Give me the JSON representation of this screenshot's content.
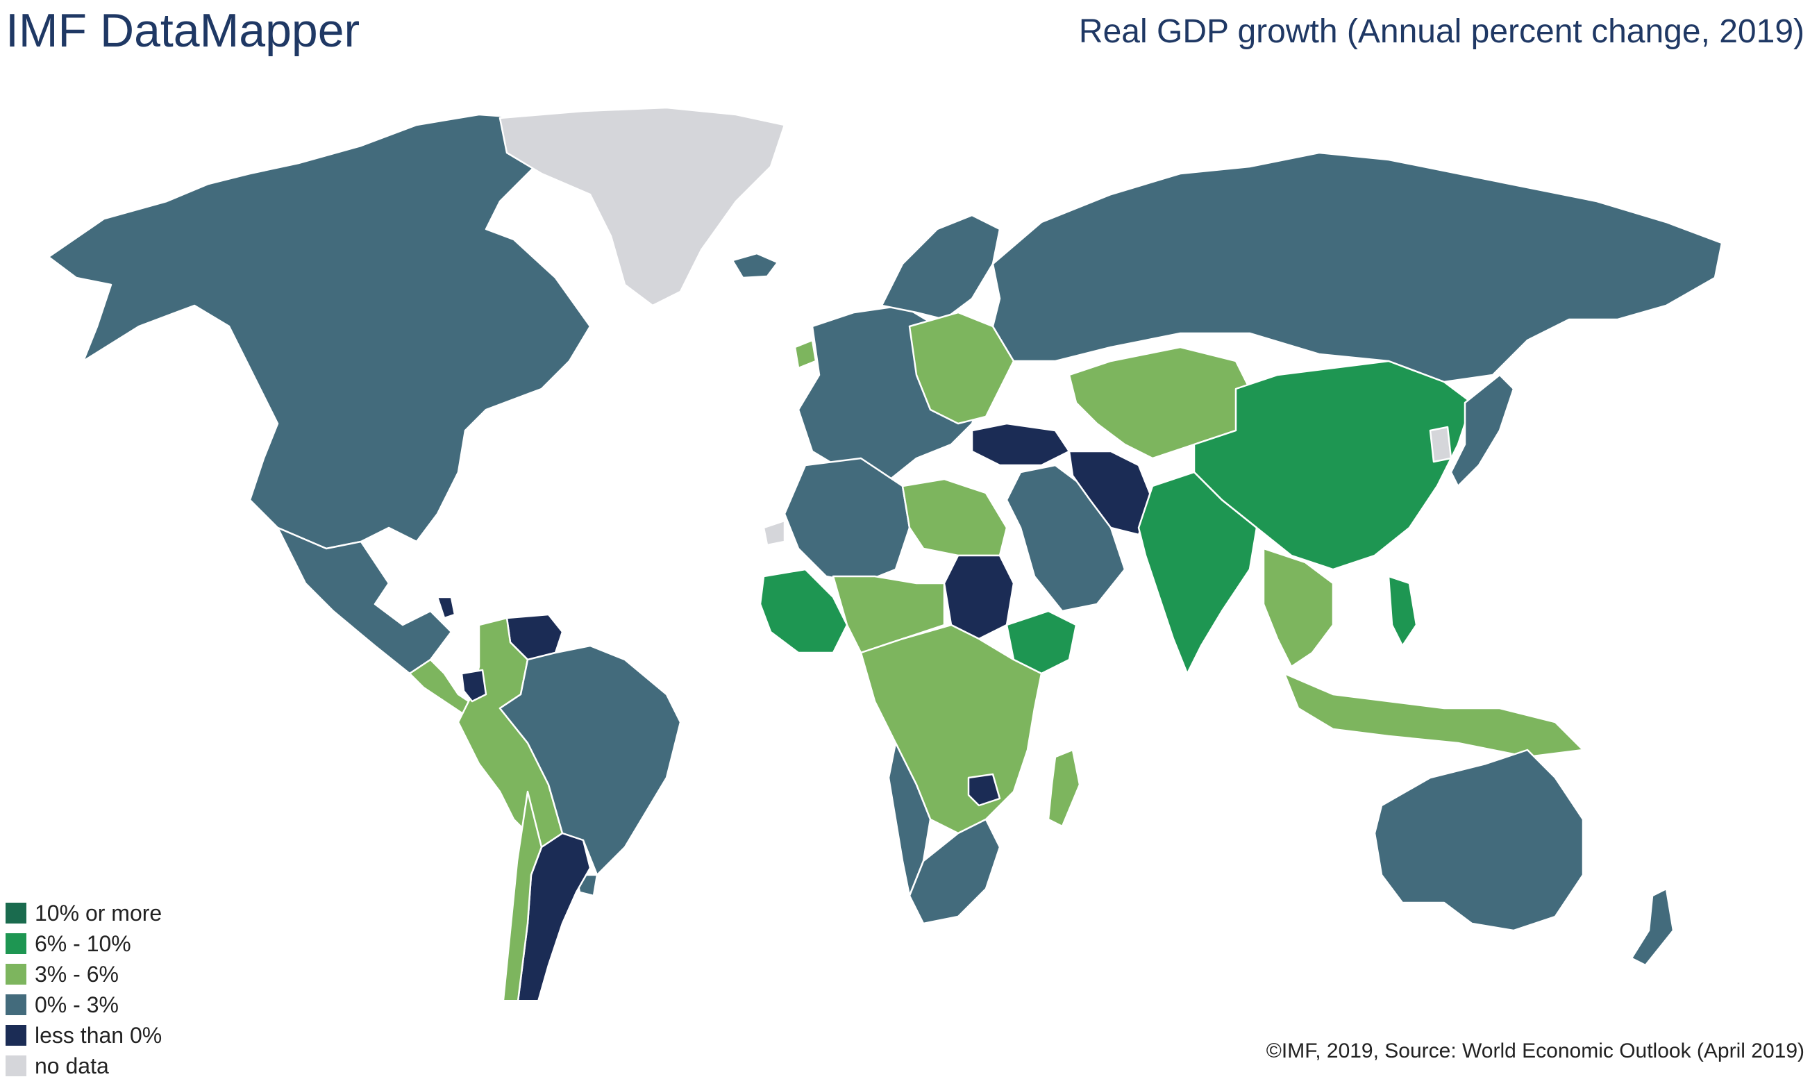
{
  "header": {
    "app_title": "IMF DataMapper",
    "map_title": "Real GDP growth (Annual percent change, 2019)"
  },
  "legend": {
    "items": [
      {
        "label": "10% or more",
        "color": "#1a6b4e"
      },
      {
        "label": "6% - 10%",
        "color": "#1e9652"
      },
      {
        "label": "3% - 6%",
        "color": "#7db55e"
      },
      {
        "label": "0% - 3%",
        "color": "#436b7c"
      },
      {
        "label": "less than 0%",
        "color": "#1b2c55"
      },
      {
        "label": "no data",
        "color": "#d5d6da"
      }
    ]
  },
  "footer": {
    "credit": "©IMF, 2019, Source: World Economic Outlook (April 2019)"
  },
  "map": {
    "ocean_color": "#ffffff",
    "border_color": "#ffffff",
    "regions": [
      {
        "name": "north-america",
        "category": "0% - 3%"
      },
      {
        "name": "greenland",
        "category": "no data"
      },
      {
        "name": "mexico",
        "category": "0% - 3%"
      },
      {
        "name": "central-america",
        "category": "3% - 6%"
      },
      {
        "name": "nicaragua",
        "category": "less than 0%"
      },
      {
        "name": "venezuela",
        "category": "less than 0%"
      },
      {
        "name": "colombia-peru-bolivia",
        "category": "3% - 6%"
      },
      {
        "name": "ecuador",
        "category": "less than 0%"
      },
      {
        "name": "brazil",
        "category": "0% - 3%"
      },
      {
        "name": "argentina",
        "category": "less than 0%"
      },
      {
        "name": "chile",
        "category": "3% - 6%"
      },
      {
        "name": "uruguay",
        "category": "0% - 3%"
      },
      {
        "name": "western-europe",
        "category": "0% - 3%"
      },
      {
        "name": "ireland",
        "category": "3% - 6%"
      },
      {
        "name": "eastern-europe",
        "category": "3% - 6%"
      },
      {
        "name": "scandinavia",
        "category": "0% - 3%"
      },
      {
        "name": "iceland",
        "category": "0% - 3%"
      },
      {
        "name": "russia",
        "category": "0% - 3%"
      },
      {
        "name": "turkey",
        "category": "less than 0%"
      },
      {
        "name": "iran",
        "category": "less than 0%"
      },
      {
        "name": "middle-east",
        "category": "0% - 3%"
      },
      {
        "name": "central-asia",
        "category": "3% - 6%"
      },
      {
        "name": "china",
        "category": "6% - 10%"
      },
      {
        "name": "india",
        "category": "6% - 10%"
      },
      {
        "name": "southeast-asia",
        "category": "3% - 6%"
      },
      {
        "name": "philippines",
        "category": "6% - 10%"
      },
      {
        "name": "japan",
        "category": "0% - 3%"
      },
      {
        "name": "korea",
        "category": "no data"
      },
      {
        "name": "indonesia",
        "category": "3% - 6%"
      },
      {
        "name": "australia",
        "category": "0% - 3%"
      },
      {
        "name": "new-zealand",
        "category": "0% - 3%"
      },
      {
        "name": "north-africa",
        "category": "0% - 3%"
      },
      {
        "name": "morocco-egypt",
        "category": "3% - 6%"
      },
      {
        "name": "west-africa",
        "category": "6% - 10%"
      },
      {
        "name": "sahel",
        "category": "3% - 6%"
      },
      {
        "name": "sudan",
        "category": "less than 0%"
      },
      {
        "name": "ethiopia",
        "category": "6% - 10%"
      },
      {
        "name": "central-africa",
        "category": "3% - 6%"
      },
      {
        "name": "angola-namibia",
        "category": "0% - 3%"
      },
      {
        "name": "zimbabwe",
        "category": "less than 0%"
      },
      {
        "name": "southern-africa",
        "category": "0% - 3%"
      },
      {
        "name": "madagascar",
        "category": "3% - 6%"
      },
      {
        "name": "western-sahara",
        "category": "no data"
      }
    ]
  }
}
